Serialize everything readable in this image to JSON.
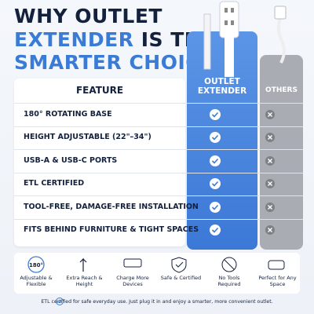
{
  "title": {
    "line1": "WHY OUTLET",
    "line2_highlight": "EXTENDER",
    "line2_rest": "IS THE",
    "line3": "SMARTER CHOICE"
  },
  "table": {
    "headers": [
      "FEATURE",
      "OUTLET EXTENDER",
      "OTHERS"
    ],
    "rows": [
      "180° ROTATING BASE",
      "HEIGHT ADJUSTABLE (22\"–34\")",
      "USB-A & USB-C PORTS",
      "ETL CERTIFIED",
      "TOOL-FREE, DAMAGE-FREE INSTALLATION",
      "FITS BEHIND FURNITURE & TIGHT SPACES"
    ]
  },
  "benefits": {
    "icon_text": "180°",
    "labels": [
      "Adjustable & Flexible",
      "Extra Reach & Height",
      "Charge More Devices",
      "Safe & Certified",
      "No Tools Required",
      "Perfect for Any Space"
    ]
  },
  "footer": "ETL certified for safe everyday use. Just plug it in and enjoy a smarter, more convenient outlet."
}
